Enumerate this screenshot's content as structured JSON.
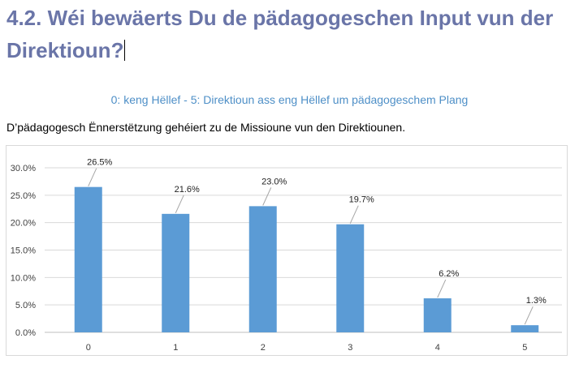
{
  "page": {
    "heading": "4.2. Wéi bewäerts Du de pädagogeschen Input vun der Direktioun?",
    "scale_note": "0: keng Hëllef - 5: Direktioun ass eng Hëllef um pädagogeschem Plang",
    "statement": "D’pädagogesch Ënnerstëtzung gehéiert zu de Missioune vun den Direktiounen."
  },
  "colors": {
    "bar": "#5b9bd5",
    "heading": "#6a75a8",
    "subtitle": "#4e8fc7"
  },
  "chart_data": {
    "type": "bar",
    "categories": [
      "0",
      "1",
      "2",
      "3",
      "4",
      "5"
    ],
    "values": [
      26.5,
      21.6,
      23.0,
      19.7,
      6.2,
      1.3
    ],
    "data_labels": [
      "26.5%",
      "21.6%",
      "23.0%",
      "19.7%",
      "6.2%",
      "1.3%"
    ],
    "y_ticks": [
      0,
      5,
      10,
      15,
      20,
      25,
      30
    ],
    "y_tick_labels": [
      "0.0%",
      "5.0%",
      "10.0%",
      "15.0%",
      "20.0%",
      "25.0%",
      "30.0%"
    ],
    "ylim": [
      0,
      30
    ],
    "grid": true,
    "title": "",
    "xlabel": "",
    "ylabel": ""
  }
}
